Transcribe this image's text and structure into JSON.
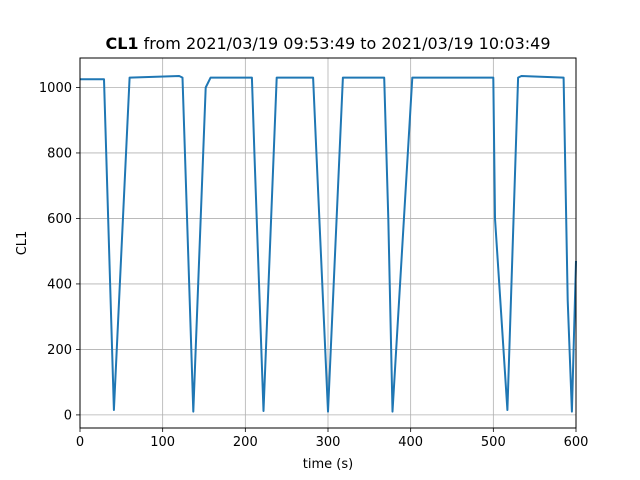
{
  "chart_data": {
    "type": "line",
    "title_bold": "CL1",
    "title_rest": " from 2021/03/19 09:53:49 to 2021/03/19 10:03:49",
    "xlabel": "time (s)",
    "ylabel": "CL1",
    "xlim": [
      0,
      600
    ],
    "ylim": [
      -40,
      1090
    ],
    "xticks": [
      0,
      100,
      200,
      300,
      400,
      500,
      600
    ],
    "yticks": [
      0,
      200,
      400,
      600,
      800,
      1000
    ],
    "grid": true,
    "line_color": "#1f77b4",
    "series": [
      {
        "x": [
          0,
          29,
          41,
          60,
          120,
          124,
          137,
          152,
          158,
          208,
          211,
          222,
          238,
          244,
          282,
          286,
          300,
          318,
          324,
          368,
          373,
          378,
          402,
          408,
          500,
          502,
          517,
          530,
          534,
          585,
          590,
          595,
          600
        ],
        "y": [
          1025,
          1025,
          15,
          1030,
          1035,
          1030,
          10,
          1000,
          1030,
          1030,
          800,
          12,
          1030,
          1030,
          1030,
          800,
          10,
          1030,
          1030,
          1030,
          600,
          10,
          1030,
          1030,
          1030,
          600,
          15,
          1030,
          1035,
          1030,
          350,
          10,
          470
        ]
      }
    ]
  }
}
